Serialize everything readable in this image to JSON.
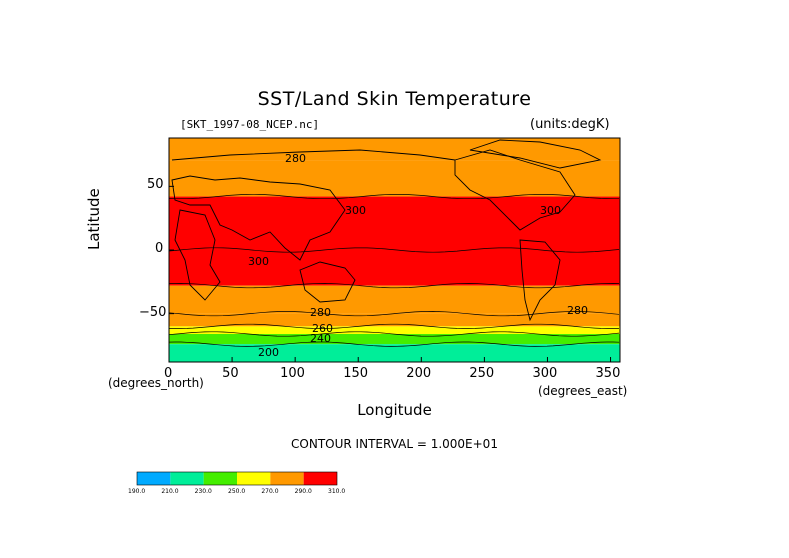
{
  "chart_data": {
    "type": "heatmap",
    "title": "SST/Land Skin Temperature",
    "subtitle": "[SKT_1997-08_NCEP.nc]",
    "units_label": "(units:degK)",
    "xlabel": "Longitude",
    "ylabel": "Latitude",
    "x_units_left": "(degrees_north)",
    "x_units_right": "(degrees_east)",
    "xlim": [
      0,
      357.5
    ],
    "ylim": [
      -88,
      88
    ],
    "x_ticks": [
      0,
      50,
      100,
      150,
      200,
      250,
      300,
      350
    ],
    "y_ticks": [
      50,
      0,
      -50
    ],
    "contour_interval_text": "CONTOUR INTERVAL = 1.000E+01",
    "contour_labels": [
      "280",
      "300",
      "300",
      "300",
      "280",
      "280",
      "260",
      "240",
      "200"
    ],
    "colorbar": {
      "levels": [
        "190.0",
        "210.0",
        "230.0",
        "250.0",
        "270.0",
        "290.0",
        "310.0"
      ],
      "colors": [
        "#0099ff",
        "#00e6a0",
        "#22e08a",
        "#55dd00",
        "#ffff00",
        "#ff9900",
        "#ff0000"
      ],
      "colors_display": [
        "#00aaff",
        "#00ee99",
        "#44ee00",
        "#ffff00",
        "#ff9900",
        "#ff0000"
      ]
    },
    "zonal_bands": [
      {
        "lat_from": 88,
        "lat_to": 70,
        "value": 275
      },
      {
        "lat_from": 70,
        "lat_to": 42,
        "value": 285
      },
      {
        "lat_from": 42,
        "lat_to": -28,
        "value": 300
      },
      {
        "lat_from": -28,
        "lat_to": -50,
        "value": 285
      },
      {
        "lat_from": -50,
        "lat_to": -60,
        "value": 275
      },
      {
        "lat_from": -60,
        "lat_to": -66,
        "value": 265
      },
      {
        "lat_from": -66,
        "lat_to": -74,
        "value": 245
      },
      {
        "lat_from": -74,
        "lat_to": -88,
        "value": 225
      }
    ]
  }
}
